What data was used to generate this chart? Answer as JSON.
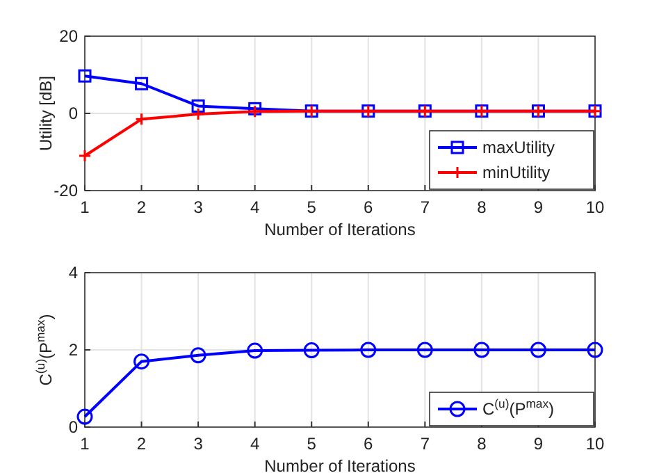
{
  "chart_data": [
    {
      "type": "line",
      "ylabel": "Utility [dB]",
      "xlabel": "Number of Iterations",
      "x": [
        1,
        2,
        3,
        4,
        5,
        6,
        7,
        8,
        9,
        10
      ],
      "xlim": [
        1,
        10
      ],
      "xticks": [
        1,
        2,
        3,
        4,
        5,
        6,
        7,
        8,
        9,
        10
      ],
      "ylim": [
        -20,
        20
      ],
      "yticks": [
        -20,
        0,
        20
      ],
      "grid": true,
      "legend": "bottom right",
      "series": [
        {
          "name": "maxUtility",
          "color": "#0000ff",
          "marker": "square",
          "values": [
            9.7,
            7.7,
            1.9,
            1.2,
            0.6,
            0.6,
            0.6,
            0.6,
            0.6,
            0.6
          ]
        },
        {
          "name": "minUtility",
          "color": "#ff0000",
          "marker": "cross",
          "values": [
            -11,
            -1.5,
            -0.2,
            0.5,
            0.6,
            0.6,
            0.6,
            0.6,
            0.6,
            0.6
          ]
        }
      ]
    },
    {
      "type": "line",
      "ylabel": "C$^{(u)}$(P$^{max}$)",
      "xlabel": "Number of Iterations",
      "x": [
        1,
        2,
        3,
        4,
        5,
        6,
        7,
        8,
        9,
        10
      ],
      "xlim": [
        1,
        10
      ],
      "xticks": [
        1,
        2,
        3,
        4,
        5,
        6,
        7,
        8,
        9,
        10
      ],
      "ylim": [
        0,
        4
      ],
      "yticks": [
        0,
        2,
        4
      ],
      "grid": true,
      "legend": "bottom right",
      "series": [
        {
          "name": "C$^{(u)}$(P$^{max}$)",
          "color": "#0000ff",
          "marker": "circle",
          "values": [
            0.27,
            1.7,
            1.86,
            1.98,
            1.99,
            2,
            2,
            2,
            2,
            2
          ]
        }
      ]
    }
  ]
}
